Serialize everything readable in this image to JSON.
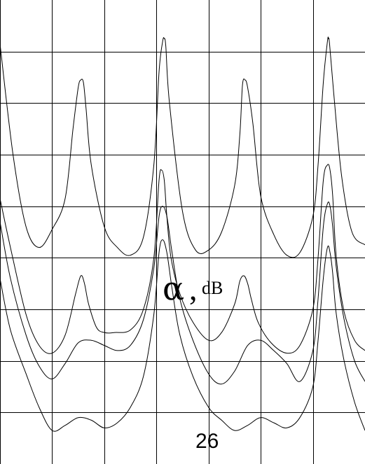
{
  "chart_data": {
    "type": "line",
    "title": "",
    "xlabel": "",
    "ylabel_symbol": "α",
    "ylabel_sep": ",",
    "ylabel_unit": "dB",
    "bottom_label": "26",
    "grid": true,
    "xlim": [
      0,
      7
    ],
    "ylim": [
      0,
      9
    ],
    "x_gridlines": [
      1,
      2,
      3,
      4,
      5,
      6
    ],
    "y_gridlines": [
      1,
      2,
      3,
      4,
      5,
      6,
      7,
      8
    ],
    "series": [
      {
        "x": [
          0,
          0.25,
          0.5,
          0.75,
          1,
          1.25,
          1.4,
          1.5,
          1.55,
          1.6,
          1.65,
          1.75,
          2,
          2.25,
          2.5,
          2.75,
          2.95,
          3.05,
          3.12,
          3.15,
          3.18,
          3.25,
          3.5,
          3.75,
          4,
          4.25,
          4.5,
          4.6,
          4.65,
          4.7,
          4.75,
          4.85,
          5,
          5.25,
          5.5,
          5.75,
          6,
          6.1,
          6.2,
          6.28,
          6.3,
          6.32,
          6.4,
          6.55,
          6.75,
          7
        ],
        "y": [
          8.15,
          6.0,
          4.6,
          4.2,
          4.55,
          5.15,
          6.5,
          7.3,
          7.45,
          7.4,
          6.9,
          5.8,
          4.6,
          4.2,
          4.05,
          4.4,
          5.8,
          7.6,
          8.2,
          8.25,
          8.1,
          7.0,
          4.9,
          4.15,
          4.15,
          4.5,
          5.4,
          6.4,
          7.35,
          7.45,
          7.3,
          6.6,
          5.2,
          4.45,
          4.05,
          4.1,
          4.8,
          5.8,
          7.4,
          8.2,
          8.25,
          8.15,
          7.2,
          5.6,
          4.5,
          4.25
        ]
      },
      {
        "x": [
          0,
          0.2,
          0.5,
          0.75,
          1,
          1.25,
          1.45,
          1.55,
          1.62,
          1.7,
          1.85,
          2,
          2.2,
          2.5,
          2.75,
          2.95,
          3.05,
          3.1,
          3.15,
          3.2,
          3.28,
          3.45,
          3.7,
          4,
          4.25,
          4.5,
          4.6,
          4.68,
          4.75,
          4.82,
          4.95,
          5.2,
          5.5,
          5.75,
          6,
          6.1,
          6.2,
          6.28,
          6.33,
          6.38,
          6.45,
          6.6,
          6.8,
          7
        ],
        "y": [
          5.15,
          4.2,
          2.9,
          2.3,
          2.15,
          2.5,
          3.3,
          3.65,
          3.5,
          3.1,
          2.65,
          2.55,
          2.55,
          2.6,
          3.0,
          4.0,
          5.5,
          5.7,
          5.5,
          4.8,
          4.0,
          3.3,
          2.75,
          2.4,
          2.55,
          3.1,
          3.55,
          3.65,
          3.5,
          3.2,
          2.75,
          2.35,
          2.15,
          2.3,
          3.0,
          4.0,
          5.5,
          5.8,
          5.7,
          5.2,
          4.0,
          2.95,
          2.4,
          2.2
        ]
      },
      {
        "x": [
          0,
          0.2,
          0.5,
          0.75,
          1,
          1.25,
          1.5,
          1.75,
          2,
          2.25,
          2.5,
          2.75,
          2.95,
          3.05,
          3.12,
          3.2,
          3.3,
          3.45,
          3.7,
          4,
          4.25,
          4.5,
          4.75,
          5,
          5.25,
          5.5,
          5.75,
          6,
          6.1,
          6.2,
          6.28,
          6.33,
          6.38,
          6.45,
          6.6,
          6.8,
          7
        ],
        "y": [
          4.7,
          3.6,
          2.5,
          1.9,
          1.65,
          1.95,
          2.35,
          2.4,
          2.3,
          2.2,
          2.3,
          2.8,
          3.8,
          4.8,
          5.0,
          4.8,
          4.1,
          3.2,
          2.4,
          1.75,
          1.55,
          1.8,
          2.3,
          2.4,
          2.2,
          1.95,
          1.6,
          2.2,
          3.2,
          4.6,
          5.05,
          5.0,
          4.6,
          3.8,
          2.8,
          2.0,
          1.6
        ]
      },
      {
        "x": [
          0,
          0.2,
          0.5,
          0.75,
          1,
          1.25,
          1.5,
          1.75,
          2,
          2.25,
          2.5,
          2.75,
          2.95,
          3.05,
          3.12,
          3.2,
          3.3,
          3.45,
          3.7,
          4,
          4.25,
          4.5,
          4.75,
          5,
          5.25,
          5.5,
          5.75,
          6,
          6.1,
          6.2,
          6.28,
          6.33,
          6.38,
          6.45,
          6.6,
          6.8,
          7
        ],
        "y": [
          3.6,
          2.6,
          1.75,
          1.1,
          0.65,
          0.75,
          0.9,
          0.85,
          0.7,
          0.8,
          1.1,
          1.7,
          2.9,
          4.1,
          4.35,
          4.1,
          3.4,
          2.5,
          1.7,
          1.1,
          0.85,
          0.65,
          0.75,
          0.9,
          0.8,
          0.7,
          0.9,
          1.5,
          2.4,
          3.6,
          4.2,
          4.1,
          3.7,
          2.9,
          2.0,
          1.2,
          0.65
        ]
      }
    ]
  }
}
